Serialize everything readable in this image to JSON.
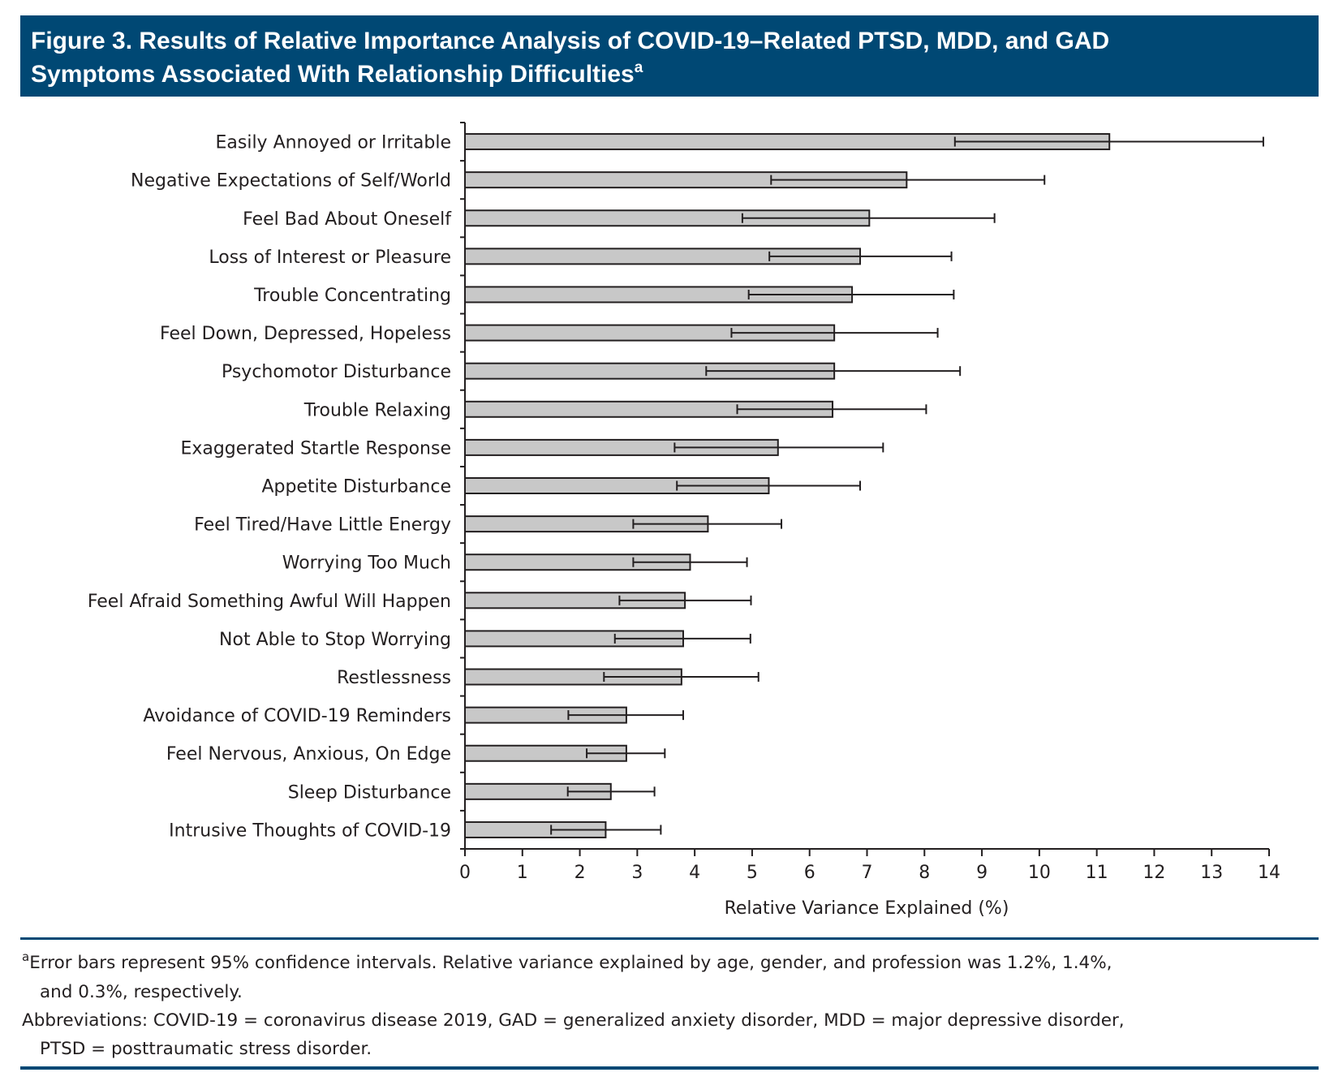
{
  "colors": {
    "title_band": "#004874",
    "bar_fill": "#c8c8c8",
    "bar_stroke": "#231f20",
    "rule": "#004874"
  },
  "header": {
    "title_line1": "Figure 3. Results of Relative Importance Analysis of COVID-19–Related PTSD, MDD, and GAD",
    "title_line2": "Symptoms Associated With Relationship Difficulties",
    "title_sup": "a"
  },
  "chart_data": {
    "type": "bar",
    "orientation": "horizontal",
    "xlabel": "Relative Variance Explained (%)",
    "xlim": [
      0,
      14
    ],
    "xticks": [
      0,
      1,
      2,
      3,
      4,
      5,
      6,
      7,
      8,
      9,
      10,
      11,
      12,
      13,
      14
    ],
    "grid": false,
    "error_bars": "95% confidence intervals",
    "categories": [
      "Easily Annoyed or Irritable",
      "Negative Expectations of Self/World",
      "Feel Bad About Oneself",
      "Loss of Interest or Pleasure",
      "Trouble Concentrating",
      "Feel Down, Depressed, Hopeless",
      "Psychomotor Disturbance",
      "Trouble Relaxing",
      "Exaggerated Startle Response",
      "Appetite Disturbance",
      "Feel Tired/Have Little Energy",
      "Worrying Too Much",
      "Feel Afraid Something Awful Will Happen",
      "Not Able to Stop Worrying",
      "Restlessness",
      "Avoidance of COVID-19 Reminders",
      "Feel Nervous, Anxious, On Edge",
      "Sleep Disturbance",
      "Intrusive Thoughts of COVID-19"
    ],
    "values": [
      11.22,
      7.69,
      7.04,
      6.88,
      6.74,
      6.43,
      6.43,
      6.4,
      5.45,
      5.29,
      4.23,
      3.92,
      3.83,
      3.8,
      3.77,
      2.81,
      2.81,
      2.54,
      2.45
    ],
    "ci_lower": [
      8.53,
      5.33,
      4.83,
      5.3,
      4.94,
      4.64,
      4.2,
      4.74,
      3.65,
      3.69,
      2.93,
      2.93,
      2.69,
      2.61,
      2.42,
      1.8,
      2.12,
      1.79,
      1.5
    ],
    "ci_upper": [
      13.9,
      10.09,
      9.22,
      8.47,
      8.51,
      8.23,
      8.62,
      8.03,
      7.28,
      6.88,
      5.51,
      4.91,
      4.98,
      4.97,
      5.11,
      3.8,
      3.48,
      3.3,
      3.41
    ]
  },
  "footnotes": {
    "note_sup": "a",
    "note_line1": "Error bars represent 95% confidence intervals. Relative variance explained by age, gender, and profession was 1.2%, 1.4%,",
    "note_line2": "and 0.3%, respectively.",
    "abbr_line1": "Abbreviations: COVID-19 = coronavirus disease 2019, GAD = generalized anxiety disorder, MDD = major depressive disorder,",
    "abbr_line2": "PTSD = posttraumatic stress disorder."
  }
}
